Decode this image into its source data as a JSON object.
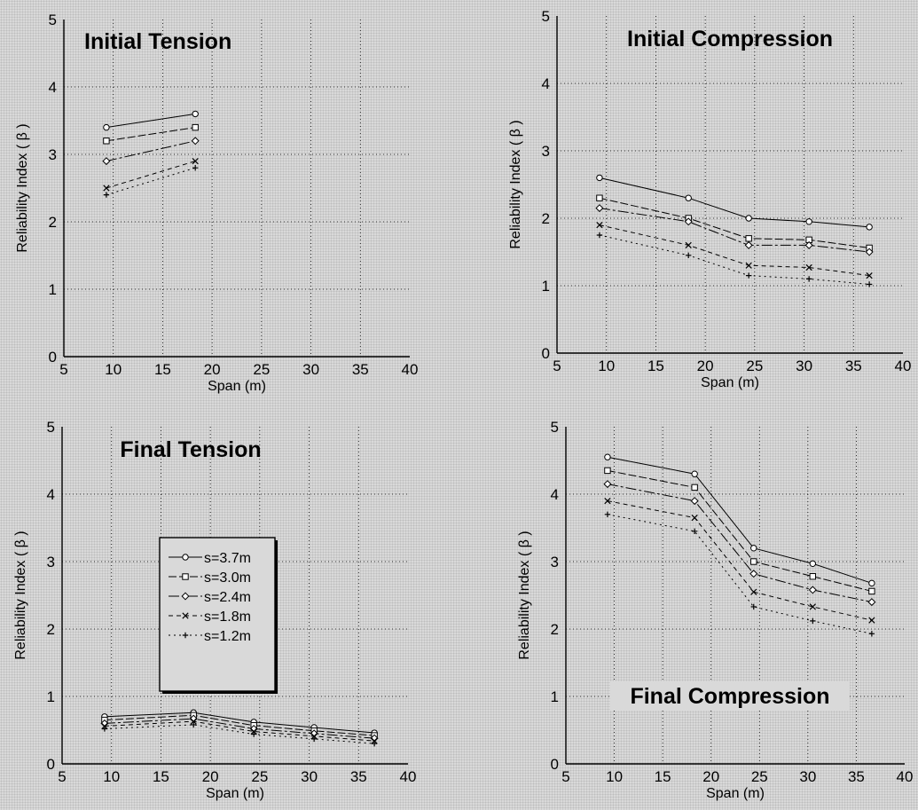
{
  "chart_data": [
    {
      "type": "line",
      "title": "Initial Tension",
      "xlabel": "Span (m)",
      "ylabel": "Reliability Index ( β )",
      "xlim": [
        5,
        40
      ],
      "ylim": [
        0,
        5
      ],
      "xticks": [
        "5",
        "10",
        "15",
        "20",
        "25",
        "30",
        "35",
        "40"
      ],
      "yticks": [
        "0",
        "1",
        "2",
        "3",
        "4",
        "5"
      ],
      "grid": true,
      "x": [
        9.3,
        18.3
      ],
      "series": [
        {
          "name": "s=3.7m",
          "marker": "circle",
          "values": [
            3.4,
            3.6
          ]
        },
        {
          "name": "s=3.0m",
          "marker": "square",
          "values": [
            3.2,
            3.4
          ]
        },
        {
          "name": "s=2.4m",
          "marker": "diamond",
          "values": [
            2.9,
            3.2
          ]
        },
        {
          "name": "s=1.8m",
          "marker": "x",
          "values": [
            2.5,
            2.9
          ]
        },
        {
          "name": "s=1.2m",
          "marker": "plus",
          "values": [
            2.4,
            2.8
          ]
        }
      ]
    },
    {
      "type": "line",
      "title": "Initial Compression",
      "xlabel": "Span (m)",
      "ylabel": "Reliability Index ( β )",
      "xlim": [
        5,
        40
      ],
      "ylim": [
        0,
        5
      ],
      "xticks": [
        "5",
        "10",
        "15",
        "20",
        "25",
        "30",
        "35",
        "40"
      ],
      "yticks": [
        "0",
        "1",
        "2",
        "3",
        "4",
        "5"
      ],
      "grid": true,
      "x": [
        9.3,
        18.3,
        24.4,
        30.5,
        36.6
      ],
      "series": [
        {
          "name": "s=3.7m",
          "marker": "circle",
          "values": [
            2.6,
            2.3,
            2.0,
            1.95,
            1.87
          ]
        },
        {
          "name": "s=3.0m",
          "marker": "square",
          "values": [
            2.3,
            2.0,
            1.7,
            1.68,
            1.56
          ]
        },
        {
          "name": "s=2.4m",
          "marker": "diamond",
          "values": [
            2.15,
            1.95,
            1.6,
            1.6,
            1.5
          ]
        },
        {
          "name": "s=1.8m",
          "marker": "x",
          "values": [
            1.9,
            1.6,
            1.3,
            1.27,
            1.15
          ]
        },
        {
          "name": "s=1.2m",
          "marker": "plus",
          "values": [
            1.75,
            1.45,
            1.15,
            1.1,
            1.02
          ]
        }
      ]
    },
    {
      "type": "line",
      "title": "Final Tension",
      "xlabel": "Span (m)",
      "ylabel": "Reliability Index ( β )",
      "xlim": [
        5,
        40
      ],
      "ylim": [
        0,
        5
      ],
      "xticks": [
        "5",
        "10",
        "15",
        "20",
        "25",
        "30",
        "35",
        "40"
      ],
      "yticks": [
        "0",
        "1",
        "2",
        "3",
        "4",
        "5"
      ],
      "grid": true,
      "legend": "center",
      "x": [
        9.3,
        18.3,
        24.4,
        30.5,
        36.6
      ],
      "series": [
        {
          "name": "s=3.7m",
          "marker": "circle",
          "values": [
            0.7,
            0.76,
            0.62,
            0.54,
            0.46
          ]
        },
        {
          "name": "s=3.0m",
          "marker": "square",
          "values": [
            0.65,
            0.72,
            0.57,
            0.49,
            0.42
          ]
        },
        {
          "name": "s=2.4m",
          "marker": "diamond",
          "values": [
            0.6,
            0.67,
            0.52,
            0.45,
            0.38
          ]
        },
        {
          "name": "s=1.8m",
          "marker": "x",
          "values": [
            0.56,
            0.63,
            0.48,
            0.41,
            0.34
          ]
        },
        {
          "name": "s=1.2m",
          "marker": "plus",
          "values": [
            0.52,
            0.58,
            0.44,
            0.37,
            0.3
          ]
        }
      ]
    },
    {
      "type": "line",
      "title": "Final Compression",
      "xlabel": "Span (m)",
      "ylabel": "Reliability Index ( β )",
      "xlim": [
        5,
        40
      ],
      "ylim": [
        0,
        5
      ],
      "xticks": [
        "5",
        "10",
        "15",
        "20",
        "25",
        "30",
        "35",
        "40"
      ],
      "yticks": [
        "0",
        "1",
        "2",
        "3",
        "4",
        "5"
      ],
      "grid": true,
      "x": [
        9.3,
        18.3,
        24.4,
        30.5,
        36.6
      ],
      "series": [
        {
          "name": "s=3.7m",
          "marker": "circle",
          "values": [
            4.55,
            4.3,
            3.2,
            2.97,
            2.68
          ]
        },
        {
          "name": "s=3.0m",
          "marker": "square",
          "values": [
            4.35,
            4.1,
            3.0,
            2.78,
            2.56
          ]
        },
        {
          "name": "s=2.4m",
          "marker": "diamond",
          "values": [
            4.15,
            3.9,
            2.82,
            2.58,
            2.4
          ]
        },
        {
          "name": "s=1.8m",
          "marker": "x",
          "values": [
            3.9,
            3.65,
            2.55,
            2.33,
            2.13
          ]
        },
        {
          "name": "s=1.2m",
          "marker": "plus",
          "values": [
            3.7,
            3.45,
            2.33,
            2.12,
            1.93
          ]
        }
      ]
    }
  ]
}
